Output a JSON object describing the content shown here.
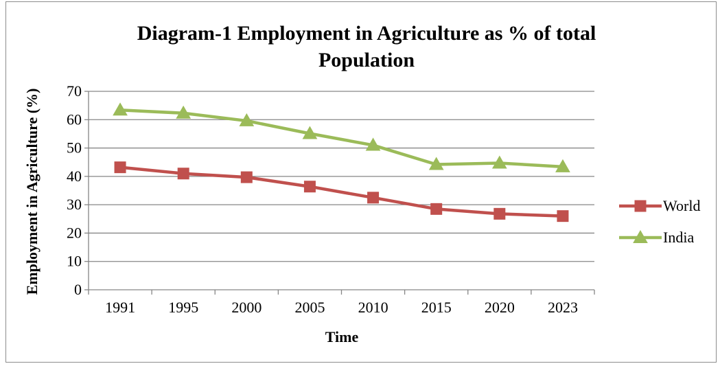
{
  "chart_data": {
    "type": "line",
    "title": "Diagram-1 Employment in Agriculture as % of total Population",
    "title_lines": [
      "Diagram-1 Employment in Agriculture as % of total",
      "Population"
    ],
    "xlabel": "Time",
    "ylabel": "Employment in Agriculture (%)",
    "categories": [
      "1991",
      "1995",
      "2000",
      "2005",
      "2010",
      "2015",
      "2020",
      "2023"
    ],
    "ylim": [
      0,
      70
    ],
    "yticks": [
      0,
      10,
      20,
      30,
      40,
      50,
      60,
      70
    ],
    "grid": true,
    "legend_position": "right",
    "series": [
      {
        "name": "World",
        "values": [
          43.2,
          41.0,
          39.7,
          36.4,
          32.5,
          28.5,
          26.8,
          26.0
        ],
        "color": "#c0504d",
        "marker": "square"
      },
      {
        "name": "India",
        "values": [
          63.4,
          62.3,
          59.6,
          55.1,
          51.0,
          44.2,
          44.7,
          43.4
        ],
        "color": "#9bbb59",
        "marker": "triangle"
      }
    ]
  }
}
